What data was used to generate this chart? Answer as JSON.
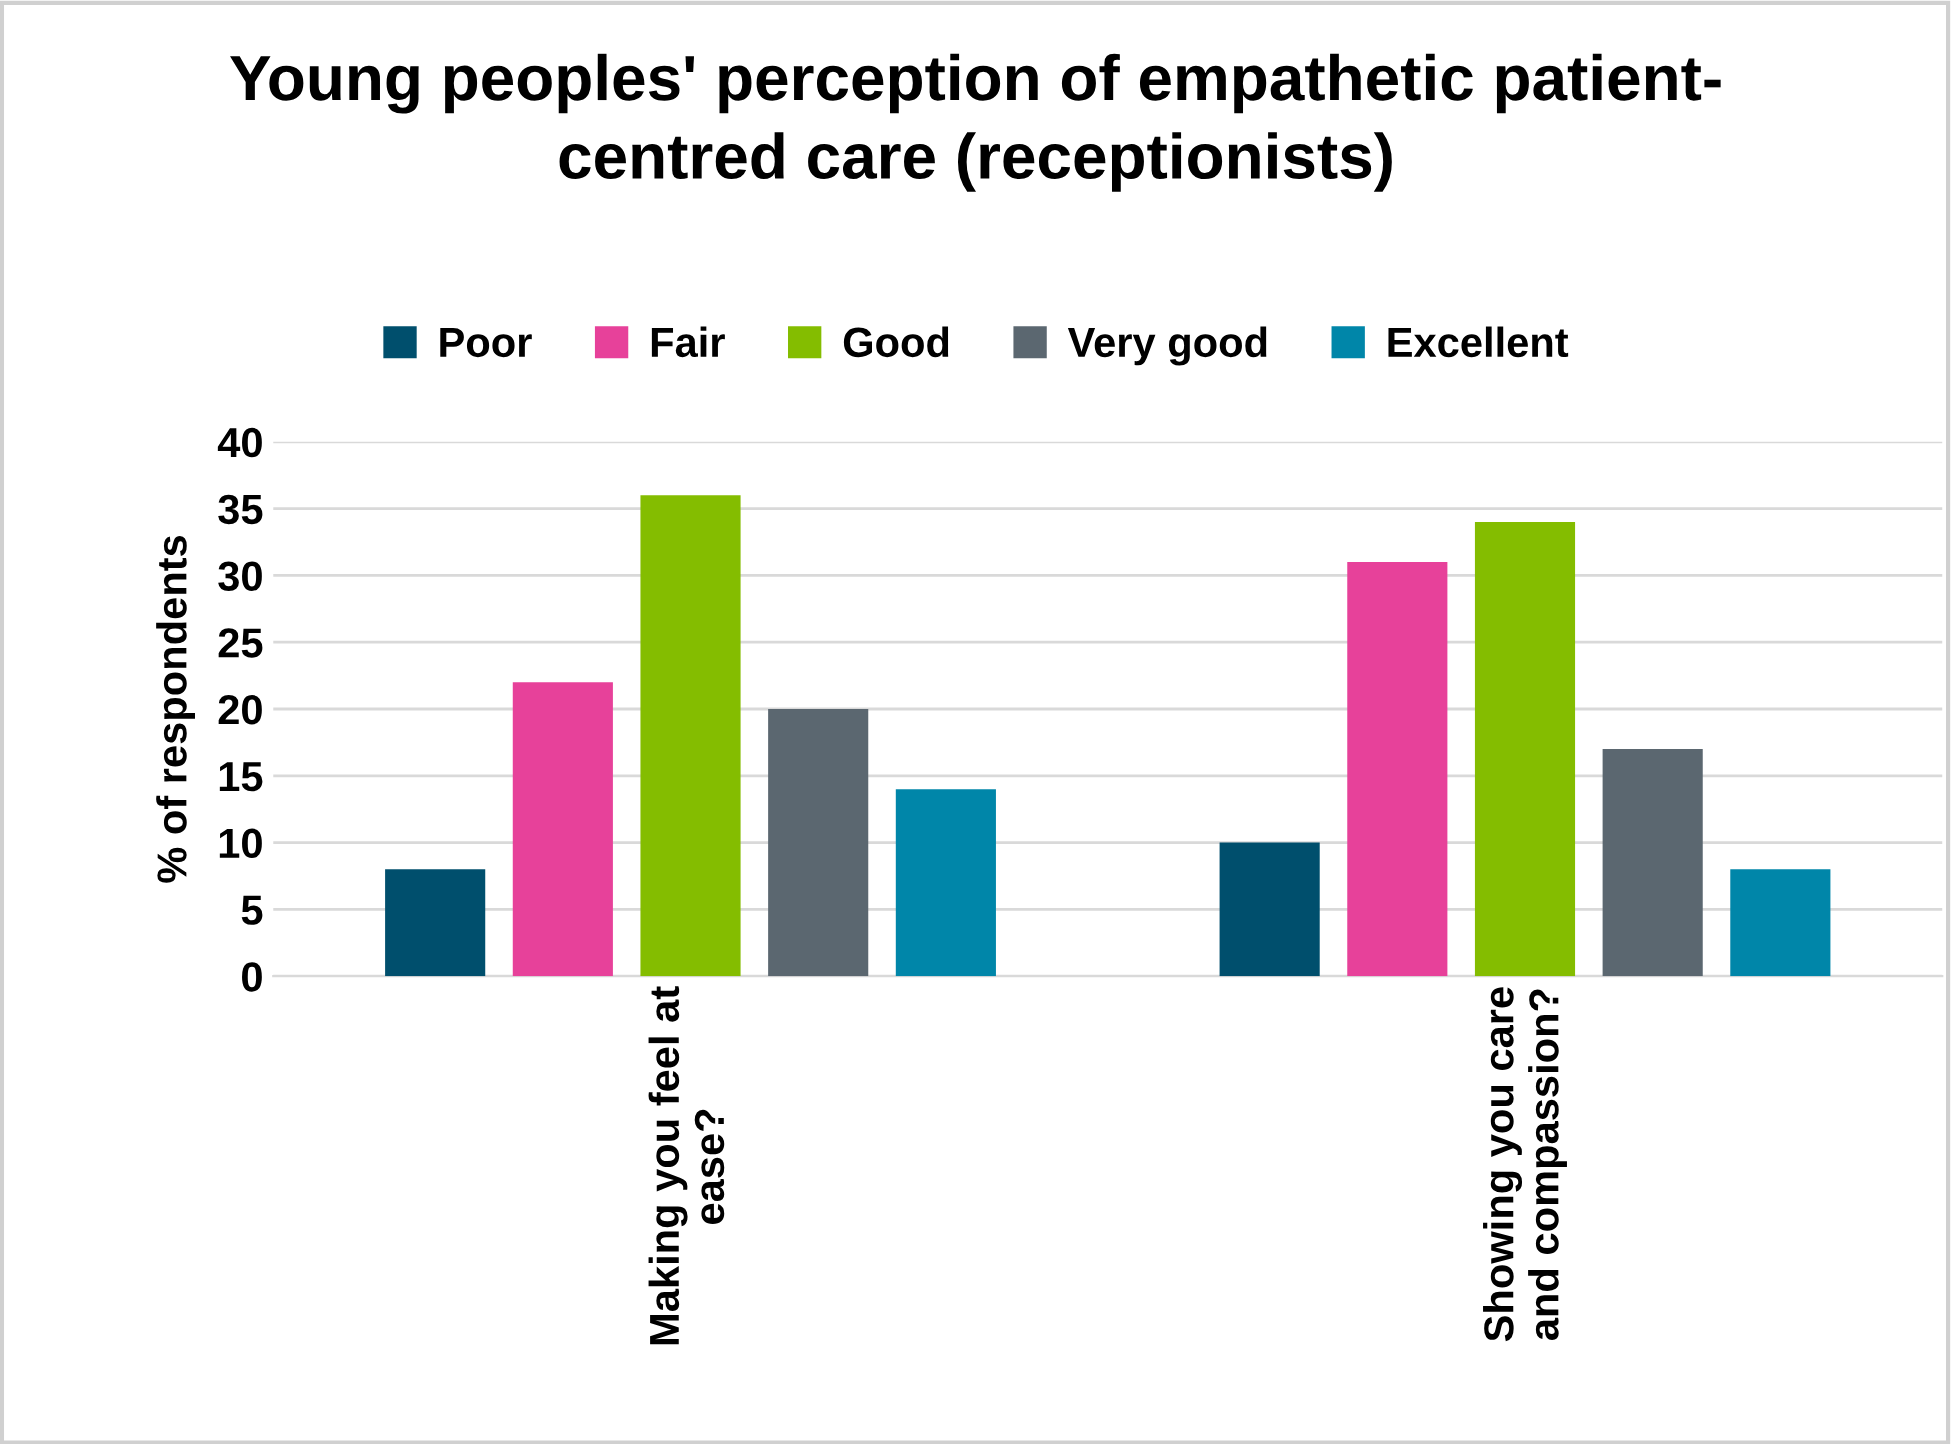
{
  "chart_data": {
    "type": "bar",
    "title": "Young peoples' perception of empathetic patient-\ncentred care (receptionists)",
    "ylabel": "% of respondents",
    "categories": [
      "Making you feel at\nease?",
      "Showing you care\nand compassion?"
    ],
    "series": [
      {
        "name": "Poor",
        "color": "#004f6d",
        "values": [
          8,
          10
        ]
      },
      {
        "name": "Fair",
        "color": "#e7419a",
        "values": [
          22,
          31
        ]
      },
      {
        "name": "Good",
        "color": "#84bd00",
        "values": [
          36,
          34
        ]
      },
      {
        "name": "Very good",
        "color": "#5b6770",
        "values": [
          20,
          17
        ]
      },
      {
        "name": "Excellent",
        "color": "#0086a9",
        "values": [
          14,
          8
        ]
      }
    ],
    "ylim": [
      0,
      40
    ],
    "yticks": [
      0,
      5,
      10,
      15,
      20,
      25,
      30,
      35,
      40
    ],
    "grid": "y",
    "legend": "top"
  }
}
